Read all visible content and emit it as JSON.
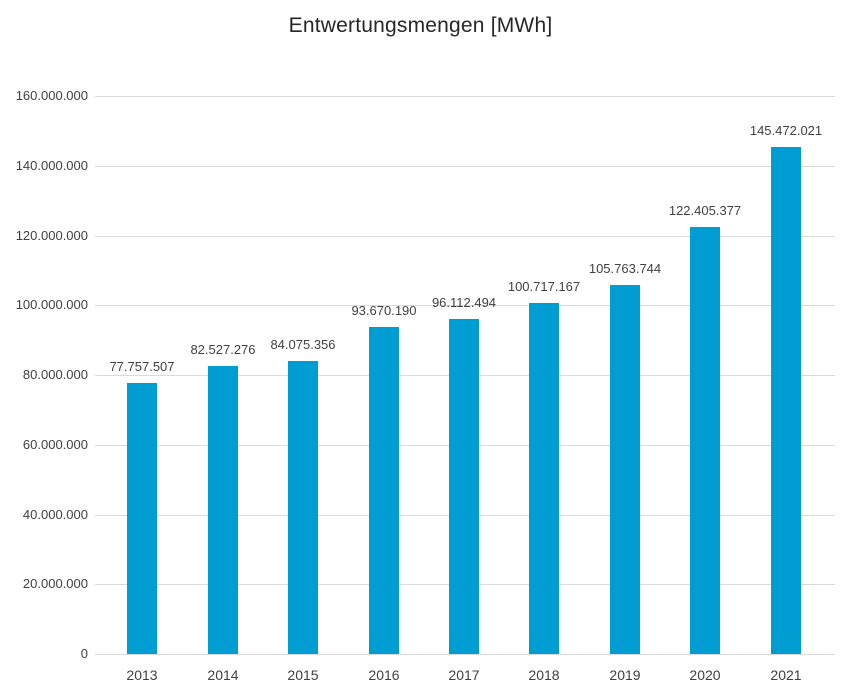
{
  "chart_data": {
    "type": "bar",
    "title": "Entwertungsmengen [MWh]",
    "categories": [
      "2013",
      "2014",
      "2015",
      "2016",
      "2017",
      "2018",
      "2019",
      "2020",
      "2021"
    ],
    "values": [
      77757507,
      82527276,
      84075356,
      93670190,
      96112494,
      100717167,
      105763744,
      122405377,
      145472021
    ],
    "value_labels": [
      "77.757.507",
      "82.527.276",
      "84.075.356",
      "93.670.190",
      "96.112.494",
      "100.717.167",
      "105.763.744",
      "122.405.377",
      "145.472.021"
    ],
    "y_tick_values": [
      0,
      20000000,
      40000000,
      60000000,
      80000000,
      100000000,
      120000000,
      140000000,
      160000000
    ],
    "y_tick_labels": [
      "0",
      "20.000.000",
      "40.000.000",
      "60.000.000",
      "80.000.000",
      "100.000.000",
      "120.000.000",
      "140.000.000",
      "160.000.000"
    ],
    "ylim": [
      0,
      160000000
    ],
    "xlabel": "",
    "ylabel": "",
    "grid": true,
    "legend_position": "none",
    "colors": {
      "bar": "#009DD3",
      "gridline": "#D9D9D9",
      "axis_line": "#D9D9D9",
      "axis_text": "#404040",
      "data_label_text": "#404040",
      "title_text": "#262626"
    }
  }
}
